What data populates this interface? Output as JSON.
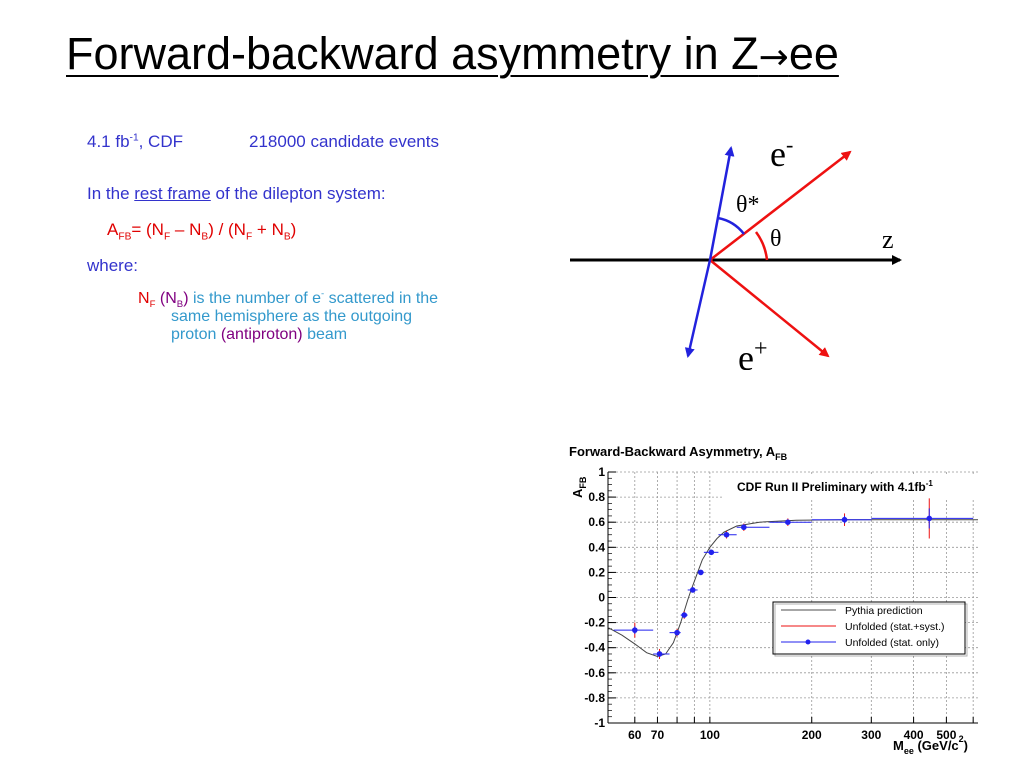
{
  "slide": {
    "title_main": "Forward-backward asymmetry in Z",
    "title_arrow": "→",
    "title_end": "ee",
    "lumi_a": "4.1 fb",
    "lumi_sup": "-1",
    "lumi_b": ", CDF",
    "events": "218000 candidate events",
    "rest_a": "In the ",
    "rest_link": "rest frame",
    "rest_b": " of the dilepton system:",
    "formula": {
      "a": "A",
      "fb": "FB",
      "eq": "= (N",
      "f1": "F",
      "minus": " – N",
      "b1": "B",
      "mid": ")  /  (N",
      "f2": "F",
      "plus": " + N",
      "b2": "B",
      "end": ")"
    },
    "where": "where:",
    "nf": {
      "a": "N",
      "f": "F",
      "open": " (",
      "nb": "N",
      "b": "B",
      "close": ")",
      "t1": " is the number of e",
      "sup": "-",
      "t2": " scattered in the",
      "line2": "same hemisphere as the outgoing",
      "line3a": "proton ",
      "line3b": "(antiproton)",
      "line3c": " beam"
    }
  },
  "diagram": {
    "e_minus": "e",
    "e_minus_sup": "-",
    "e_plus": "e",
    "e_plus_sup": "+",
    "theta_star": "θ*",
    "theta": "θ",
    "z": "z",
    "colors": {
      "axis": "#000000",
      "electron": "#ee1111",
      "frame": "#2222dd"
    }
  },
  "chart_data": {
    "type": "scatter",
    "title": "Forward-Backward Asymmetry, A",
    "title_sub": "FB",
    "ylabel": "A",
    "ylabel_sub": "FB",
    "xlabel": "M",
    "xlabel_sub": "ee",
    "xlabel_unit": " (GeV/c",
    "xlabel_unit_sup": "2",
    "xlabel_unit_end": ")",
    "annotation": "CDF Run II Preliminary with 4.1fb",
    "annotation_sup": "-1",
    "xscale": "log",
    "xlim": [
      50,
      620
    ],
    "ylim": [
      -1,
      1
    ],
    "grid": true,
    "legend_position": "center-right",
    "x_ticks": [
      "60",
      "70",
      "100",
      "200",
      "300",
      "400",
      "500"
    ],
    "x_tick_values": [
      60,
      70,
      100,
      200,
      300,
      400,
      500
    ],
    "y_ticks": [
      "1",
      "0.8",
      "0.6",
      "0.4",
      "0.2",
      "0",
      "-0.2",
      "-0.4",
      "-0.6",
      "-0.8",
      "-1"
    ],
    "y_tick_values": [
      1,
      0.8,
      0.6,
      0.4,
      0.2,
      0,
      -0.2,
      -0.4,
      -0.6,
      -0.8,
      -1
    ],
    "legend": [
      "Pythia prediction",
      "Unfolded (stat.+syst.)",
      "Unfolded (stat. only)"
    ],
    "series": [
      {
        "name": "Pythia prediction",
        "color": "#444444",
        "x": [
          50,
          55,
          60,
          65,
          70,
          74,
          78,
          82,
          86,
          88,
          90,
          92,
          95,
          100,
          105,
          110,
          120,
          140,
          180,
          250,
          350,
          450,
          620
        ],
        "y": [
          -0.24,
          -0.3,
          -0.37,
          -0.44,
          -0.47,
          -0.45,
          -0.36,
          -0.2,
          -0.02,
          0.06,
          0.13,
          0.2,
          0.3,
          0.4,
          0.47,
          0.52,
          0.57,
          0.6,
          0.615,
          0.62,
          0.62,
          0.62,
          0.62
        ]
      },
      {
        "name": "Unfolded (stat.+syst.)",
        "color": "#ee1111",
        "points": [
          {
            "x": 60,
            "y": -0.26,
            "yerr": 0.06
          },
          {
            "x": 71,
            "y": -0.45,
            "yerr": 0.04
          },
          {
            "x": 80,
            "y": -0.28,
            "yerr": 0.03
          },
          {
            "x": 84,
            "y": -0.14,
            "yerr": 0.03
          },
          {
            "x": 89,
            "y": 0.06,
            "yerr": 0.02
          },
          {
            "x": 94,
            "y": 0.2,
            "yerr": 0.02
          },
          {
            "x": 101,
            "y": 0.36,
            "yerr": 0.02
          },
          {
            "x": 112,
            "y": 0.5,
            "yerr": 0.03
          },
          {
            "x": 126,
            "y": 0.56,
            "yerr": 0.03
          },
          {
            "x": 170,
            "y": 0.6,
            "yerr": 0.03
          },
          {
            "x": 250,
            "y": 0.62,
            "yerr": 0.05
          },
          {
            "x": 445,
            "y": 0.63,
            "yerr": 0.16
          }
        ]
      },
      {
        "name": "Unfolded (stat. only)",
        "color": "#2222ee",
        "points": [
          {
            "x": 60,
            "y": -0.26,
            "xlo": 52,
            "xhi": 68,
            "yerr": 0.03
          },
          {
            "x": 71,
            "y": -0.45,
            "xlo": 68,
            "xhi": 76,
            "yerr": 0.02
          },
          {
            "x": 80,
            "y": -0.28,
            "xlo": 76,
            "xhi": 82,
            "yerr": 0.02
          },
          {
            "x": 84,
            "y": -0.14,
            "xlo": 82,
            "xhi": 86,
            "yerr": 0.02
          },
          {
            "x": 89,
            "y": 0.06,
            "xlo": 86,
            "xhi": 92,
            "yerr": 0.015
          },
          {
            "x": 94,
            "y": 0.2,
            "xlo": 92,
            "xhi": 96,
            "yerr": 0.015
          },
          {
            "x": 101,
            "y": 0.36,
            "xlo": 96,
            "xhi": 106,
            "yerr": 0.015
          },
          {
            "x": 112,
            "y": 0.5,
            "xlo": 106,
            "xhi": 120,
            "yerr": 0.02
          },
          {
            "x": 126,
            "y": 0.56,
            "xlo": 120,
            "xhi": 150,
            "yerr": 0.02
          },
          {
            "x": 170,
            "y": 0.6,
            "xlo": 150,
            "xhi": 200,
            "yerr": 0.02
          },
          {
            "x": 250,
            "y": 0.62,
            "xlo": 200,
            "xhi": 300,
            "yerr": 0.03
          },
          {
            "x": 445,
            "y": 0.63,
            "xlo": 300,
            "xhi": 600,
            "yerr": 0.08
          }
        ]
      }
    ]
  }
}
